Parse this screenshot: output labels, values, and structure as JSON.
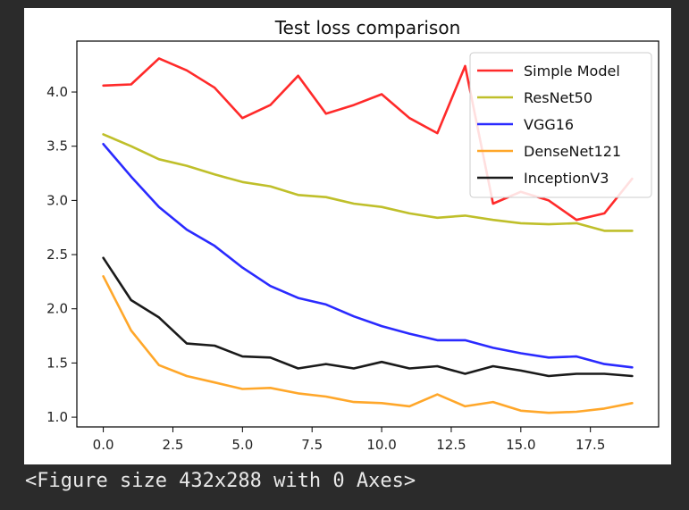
{
  "chart_data": {
    "type": "line",
    "title": "Test loss comparison",
    "xlabel": "",
    "ylabel": "",
    "xlim": [
      -0.95,
      19.95
    ],
    "ylim": [
      0.91,
      4.47
    ],
    "xticks": [
      0.0,
      2.5,
      5.0,
      7.5,
      10.0,
      12.5,
      15.0,
      17.5
    ],
    "xtick_labels": [
      "0.0",
      "2.5",
      "5.0",
      "7.5",
      "10.0",
      "12.5",
      "15.0",
      "17.5"
    ],
    "yticks": [
      1.0,
      1.5,
      2.0,
      2.5,
      3.0,
      3.5,
      4.0
    ],
    "ytick_labels": [
      "1.0",
      "1.5",
      "2.0",
      "2.5",
      "3.0",
      "3.5",
      "4.0"
    ],
    "grid": false,
    "legend_position": "top-right",
    "x": [
      0,
      1,
      2,
      3,
      4,
      5,
      6,
      7,
      8,
      9,
      10,
      11,
      12,
      13,
      14,
      15,
      16,
      17,
      18,
      19
    ],
    "series": [
      {
        "name": "Simple Model",
        "color": "#ff2a2a",
        "values": [
          4.06,
          4.07,
          4.31,
          4.2,
          4.04,
          3.76,
          3.88,
          4.15,
          3.8,
          3.88,
          3.98,
          3.76,
          3.62,
          4.24,
          2.97,
          3.08,
          3.0,
          2.82,
          2.88,
          3.2
        ]
      },
      {
        "name": "ResNet50",
        "color": "#bfbf2a",
        "values": [
          3.61,
          3.5,
          3.38,
          3.32,
          3.24,
          3.17,
          3.13,
          3.05,
          3.03,
          2.97,
          2.94,
          2.88,
          2.84,
          2.86,
          2.82,
          2.79,
          2.78,
          2.79,
          2.72,
          2.72
        ]
      },
      {
        "name": "VGG16",
        "color": "#2a2aff",
        "values": [
          3.52,
          3.22,
          2.94,
          2.73,
          2.58,
          2.38,
          2.21,
          2.1,
          2.04,
          1.93,
          1.84,
          1.77,
          1.71,
          1.71,
          1.64,
          1.59,
          1.55,
          1.56,
          1.49,
          1.46
        ]
      },
      {
        "name": "DenseNet121",
        "color": "#ffa72a",
        "values": [
          2.3,
          1.8,
          1.48,
          1.38,
          1.32,
          1.26,
          1.27,
          1.22,
          1.19,
          1.14,
          1.13,
          1.1,
          1.21,
          1.1,
          1.14,
          1.06,
          1.04,
          1.05,
          1.08,
          1.13
        ]
      },
      {
        "name": "InceptionV3",
        "color": "#1a1a1a",
        "values": [
          2.47,
          2.08,
          1.92,
          1.68,
          1.66,
          1.56,
          1.55,
          1.45,
          1.49,
          1.45,
          1.51,
          1.45,
          1.47,
          1.4,
          1.47,
          1.43,
          1.38,
          1.4,
          1.4,
          1.38
        ]
      }
    ]
  },
  "console": {
    "output_text": "<Figure size 432x288 with 0 Axes>"
  }
}
